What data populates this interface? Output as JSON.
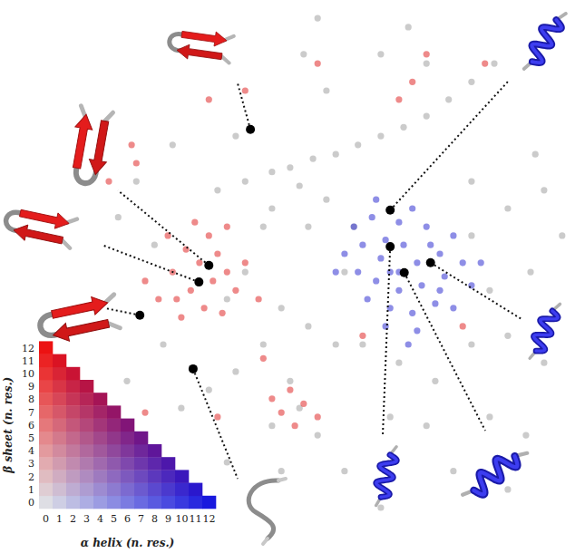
{
  "chart_data": {
    "type": "scatter",
    "tick_labels": false,
    "xlim": [
      0,
      100
    ],
    "ylim": [
      0,
      100
    ],
    "series": [
      {
        "color": "#a0a0a0",
        "marker": "circle",
        "x": [
          37.2,
          41.9,
          46.5,
          49.6,
          53.5,
          57.4,
          61.2,
          65.1,
          69.0,
          72.9,
          76.7,
          80.6,
          84.5,
          51.2,
          55.8,
          46.5,
          45.0,
          52.7,
          55.8,
          51.9,
          54.3,
          69.8,
          65.1,
          72.9,
          91.5,
          93.0,
          86.8,
          80.6,
          83.7,
          90.7,
          86.8,
          93.0,
          80.6,
          74.4,
          68.2,
          62.0,
          57.4,
          52.7,
          48.1,
          45.0,
          40.3,
          35.7,
          31.0,
          51.2,
          46.5,
          54.3,
          58.9,
          66.7,
          72.9,
          83.7,
          89.9,
          77.5,
          26.4,
          20.2,
          23.3,
          29.5,
          27.9,
          21.7,
          41.9,
          38.8,
          49.6,
          48.1,
          38.8,
          65.1,
          86.8,
          96.1,
          80.6,
          58.9,
          60.5,
          40.3
        ],
        "values": [
          65.6,
          67.2,
          68.9,
          69.7,
          71.3,
          72.1,
          73.8,
          75.4,
          77.0,
          79.0,
          82.0,
          85.2,
          88.5,
          66.4,
          63.9,
          62.3,
          59.0,
          59.0,
          83.6,
          90.2,
          96.7,
          95.1,
          90.2,
          88.5,
          72.1,
          65.6,
          62.3,
          67.2,
          47.5,
          50.8,
          39.3,
          34.4,
          37.7,
          31.1,
          34.4,
          37.7,
          37.7,
          41.0,
          44.3,
          37.7,
          32.8,
          29.5,
          26.2,
          26.2,
          23.0,
          21.3,
          14.8,
          24.6,
          23.0,
          24.6,
          21.3,
          14.8,
          55.7,
          60.7,
          67.2,
          73.8,
          37.7,
          31.1,
          50.8,
          45.9,
          31.1,
          14.8,
          16.4,
          8.2,
          11.5,
          57.4,
          57.4,
          50.8,
          59.0,
          75.4
        ]
      },
      {
        "color": "#e02a2a",
        "marker": "circle",
        "x": [
          35.7,
          37.2,
          34.1,
          31.8,
          38.8,
          36.4,
          32.6,
          29.5,
          30.2,
          40.3,
          41.9,
          38.8,
          33.3,
          28.7,
          27.1,
          34.9,
          38.0,
          31.0,
          24.8,
          44.2,
          23.3,
          22.5,
          18.6,
          35.7,
          41.9,
          68.2,
          70.5,
          72.9,
          82.9,
          46.5,
          49.6,
          48.1,
          51.9,
          54.3,
          50.4,
          54.3,
          62.0,
          79.1,
          45.0,
          24.8,
          37.2
        ],
        "values": [
          57.4,
          54.1,
          52.5,
          54.9,
          50.8,
          49.2,
          47.5,
          50.8,
          45.9,
          47.5,
          52.5,
          59.0,
          59.8,
          57.4,
          45.9,
          44.3,
          43.4,
          42.6,
          49.2,
          45.9,
          70.5,
          73.8,
          67.2,
          82.0,
          83.6,
          82.0,
          85.2,
          90.2,
          88.5,
          27.9,
          29.5,
          25.4,
          27.0,
          24.6,
          23.0,
          88.5,
          39.3,
          41.0,
          35.2,
          25.4,
          24.6
        ]
      },
      {
        "color": "#3232d2",
        "marker": "circle",
        "x": [
          60.5,
          63.6,
          68.2,
          72.9,
          77.5,
          58.9,
          62.0,
          65.1,
          69.0,
          71.3,
          75.2,
          79.1,
          61.2,
          64.3,
          68.2,
          72.1,
          76.0,
          80.6,
          62.8,
          66.7,
          70.5,
          74.4,
          77.5,
          65.9,
          71.3,
          68.2,
          70.5,
          65.9,
          73.6,
          66.7,
          75.2,
          57.4,
          82.2,
          69.8,
          64.3
        ],
        "values": [
          59.0,
          60.7,
          59.8,
          59.0,
          57.4,
          54.1,
          55.7,
          53.3,
          55.7,
          52.5,
          54.1,
          52.5,
          50.8,
          49.2,
          47.5,
          48.4,
          50.0,
          48.4,
          45.9,
          44.3,
          43.4,
          45.1,
          44.3,
          41.0,
          40.2,
          50.8,
          62.3,
          56.6,
          55.7,
          50.8,
          47.5,
          50.8,
          52.5,
          37.7,
          63.9
        ]
      },
      {
        "color": "#000000",
        "marker": "dot",
        "x": [
          42.8,
          35.7,
          34.0,
          23.9,
          33.0,
          66.7,
          66.7,
          69.1,
          73.6
        ],
        "values": [
          76.6,
          52.0,
          49.0,
          43.0,
          33.3,
          62.0,
          55.4,
          50.7,
          52.5
        ]
      }
    ],
    "color_legend": {
      "x_label": "α helix (n. res.)",
      "y_label": "β sheet (n. res.)",
      "xticks": [
        0,
        1,
        2,
        3,
        4,
        5,
        6,
        7,
        8,
        9,
        10,
        11,
        12
      ],
      "yticks": [
        0,
        1,
        2,
        3,
        4,
        5,
        6,
        7,
        8,
        9,
        10,
        11,
        12
      ]
    }
  }
}
